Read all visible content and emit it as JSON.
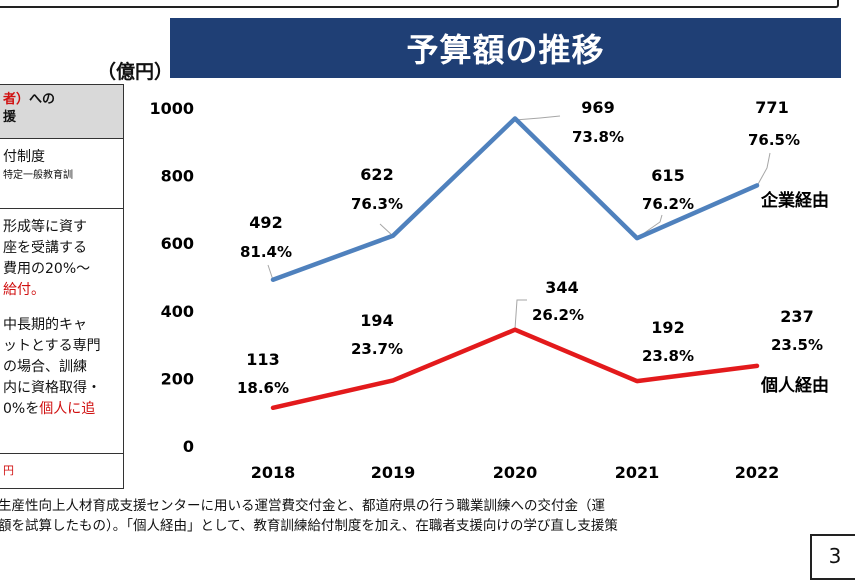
{
  "slide": {
    "title": "予算額の推移",
    "unit": "（億円）",
    "page_number": "3"
  },
  "left_panel": {
    "header_part1": "者）",
    "header_part2": "への",
    "header_line2": "援",
    "box1_line1": "付制度",
    "box1_line2": "特定一般教育訓",
    "box2_lines": [
      "形成等に資す",
      "座を受講する",
      "費用の20%～",
      "給付。",
      "",
      "中長期的キャ",
      "ットとする専門",
      "の場合、訓練",
      "内に資格取得・",
      "0%を個人に追"
    ],
    "box3_text": "円"
  },
  "footnote": {
    "line1": "生産性向上人材育成支援センターに用いる運営費交付金と、都道府県の行う職業訓練への交付金（運",
    "line2": "額を試算したもの）。「個人経由」として、教育訓練給付制度を加え、在職者支援向けの学び直し支援策"
  },
  "chart_data": {
    "type": "line",
    "categories": [
      "2018",
      "2019",
      "2020",
      "2021",
      "2022"
    ],
    "ylim": [
      0,
      1000
    ],
    "yticks": [
      "0",
      "200",
      "400",
      "600",
      "800",
      "1000"
    ],
    "ylabel": "（億円）",
    "grid": false,
    "series": [
      {
        "name": "企業経由",
        "color": "#4f81bd",
        "values": [
          492,
          622,
          969,
          615,
          771
        ],
        "value_labels": [
          "492",
          "622",
          "969",
          "615",
          "771"
        ],
        "percent_labels": [
          "81.4%",
          "76.3%",
          "73.8%",
          "76.2%",
          "76.5%"
        ]
      },
      {
        "name": "個人経由",
        "color": "#e31a1c",
        "values": [
          113,
          194,
          344,
          192,
          237
        ],
        "value_labels": [
          "113",
          "194",
          "344",
          "192",
          "237"
        ],
        "percent_labels": [
          "18.6%",
          "23.7%",
          "26.2%",
          "23.8%",
          "23.5%"
        ]
      }
    ]
  }
}
